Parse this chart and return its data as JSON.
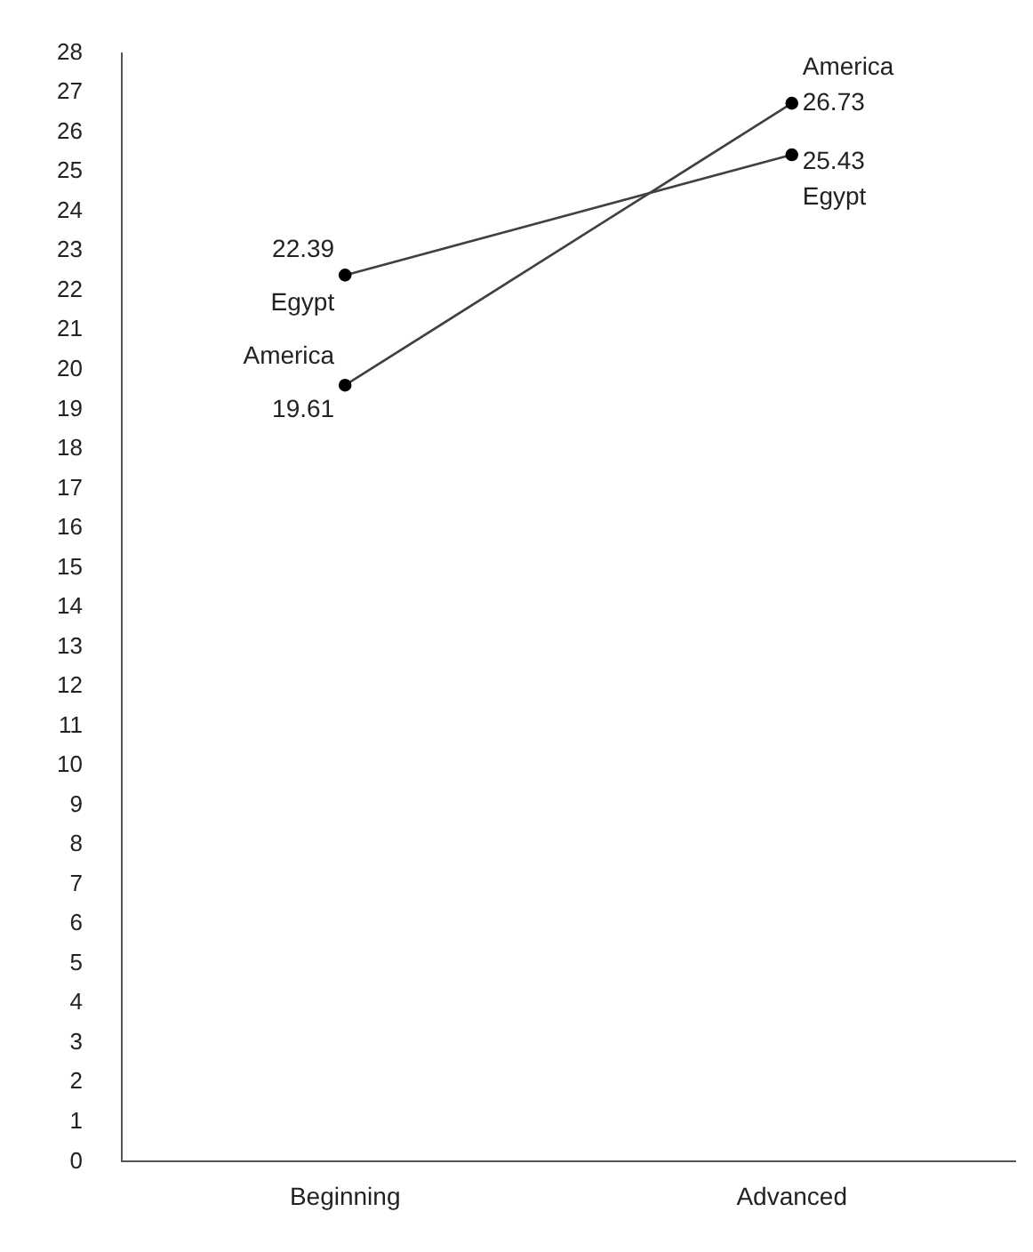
{
  "chart_data": {
    "type": "line",
    "categories": [
      "Beginning",
      "Advanced"
    ],
    "series": [
      {
        "name": "Egypt",
        "color": "#404040",
        "values": [
          22.39,
          25.43
        ]
      },
      {
        "name": "America",
        "color": "#404040",
        "values": [
          19.61,
          26.73
        ]
      }
    ],
    "ylim": [
      0,
      28
    ],
    "yticks": [
      0,
      1,
      2,
      3,
      4,
      5,
      6,
      7,
      8,
      9,
      10,
      11,
      12,
      13,
      14,
      15,
      16,
      17,
      18,
      19,
      20,
      21,
      22,
      23,
      24,
      25,
      26,
      27,
      28
    ],
    "grid": false,
    "legend": false,
    "marker": "circle",
    "line_style": "solid",
    "data_labels": true
  }
}
